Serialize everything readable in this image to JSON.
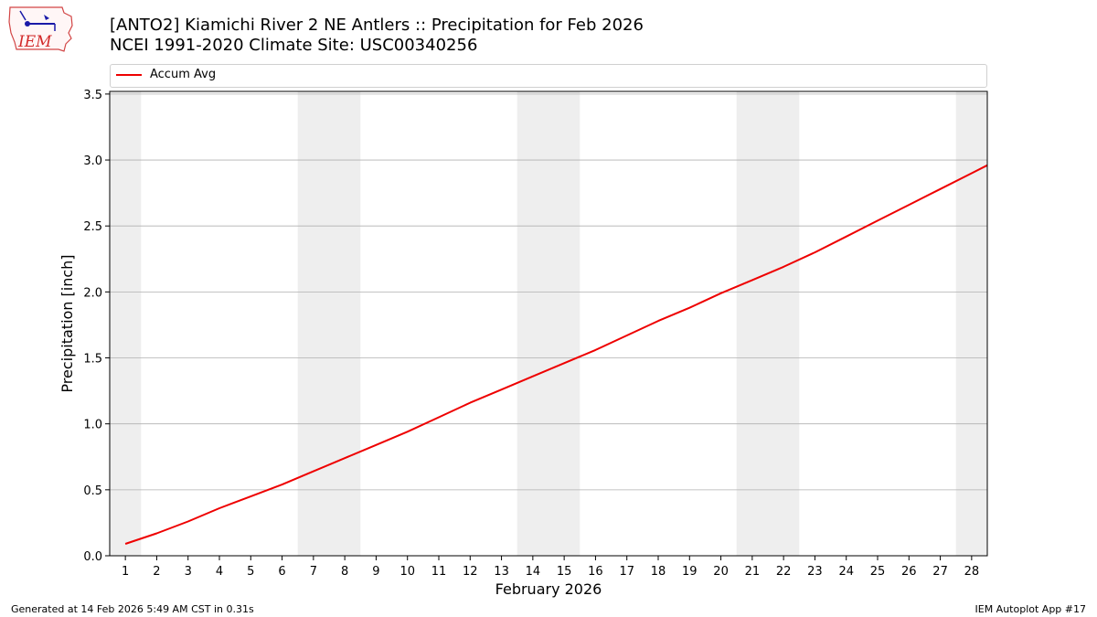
{
  "header": {
    "logo_text": "IEM",
    "title_line1": "[ANTO2] Kiamichi River 2 NE Antlers :: Precipitation for Feb 2026",
    "title_line2": "NCEI 1991-2020 Climate Site: USC00340256"
  },
  "footer": {
    "left": "Generated at 14 Feb 2026 5:49 AM CST in 0.31s",
    "right": "IEM Autoplot App #17"
  },
  "colors": {
    "series": "#ee0000",
    "weekend_band": "#eeeeee",
    "grid": "#b0b0b0"
  },
  "chart_data": {
    "type": "line",
    "title": "[ANTO2] Kiamichi River 2 NE Antlers :: Precipitation for Feb 2026",
    "subtitle": "NCEI 1991-2020 Climate Site: USC00340256",
    "xlabel": "February 2026",
    "ylabel": "Precipitation [inch]",
    "xlim": [
      0.5,
      28.5
    ],
    "ylim": [
      0,
      3.52
    ],
    "yticks": [
      0.0,
      0.5,
      1.0,
      1.5,
      2.0,
      2.5,
      3.0,
      3.5
    ],
    "ytick_labels": [
      "0.0",
      "0.5",
      "1.0",
      "1.5",
      "2.0",
      "2.5",
      "3.0",
      "3.5"
    ],
    "xticks": [
      1,
      2,
      3,
      4,
      5,
      6,
      7,
      8,
      9,
      10,
      11,
      12,
      13,
      14,
      15,
      16,
      17,
      18,
      19,
      20,
      21,
      22,
      23,
      24,
      25,
      26,
      27,
      28
    ],
    "grid": true,
    "legend_position": "top",
    "weekend_spans": [
      [
        0.5,
        1.5
      ],
      [
        6.5,
        8.5
      ],
      [
        13.5,
        15.5
      ],
      [
        20.5,
        22.5
      ],
      [
        27.5,
        28.5
      ]
    ],
    "series": [
      {
        "name": "Accum Avg",
        "color": "#ee0000",
        "x": [
          1,
          2,
          3,
          4,
          5,
          6,
          7,
          8,
          9,
          10,
          11,
          12,
          13,
          14,
          15,
          16,
          17,
          18,
          19,
          20,
          21,
          22,
          23,
          24,
          25,
          26,
          27,
          28,
          28.5
        ],
        "y": [
          0.09,
          0.17,
          0.26,
          0.36,
          0.45,
          0.54,
          0.64,
          0.74,
          0.84,
          0.94,
          1.05,
          1.16,
          1.26,
          1.36,
          1.46,
          1.56,
          1.67,
          1.78,
          1.88,
          1.99,
          2.09,
          2.19,
          2.3,
          2.42,
          2.54,
          2.66,
          2.78,
          2.9,
          2.96
        ]
      }
    ]
  }
}
